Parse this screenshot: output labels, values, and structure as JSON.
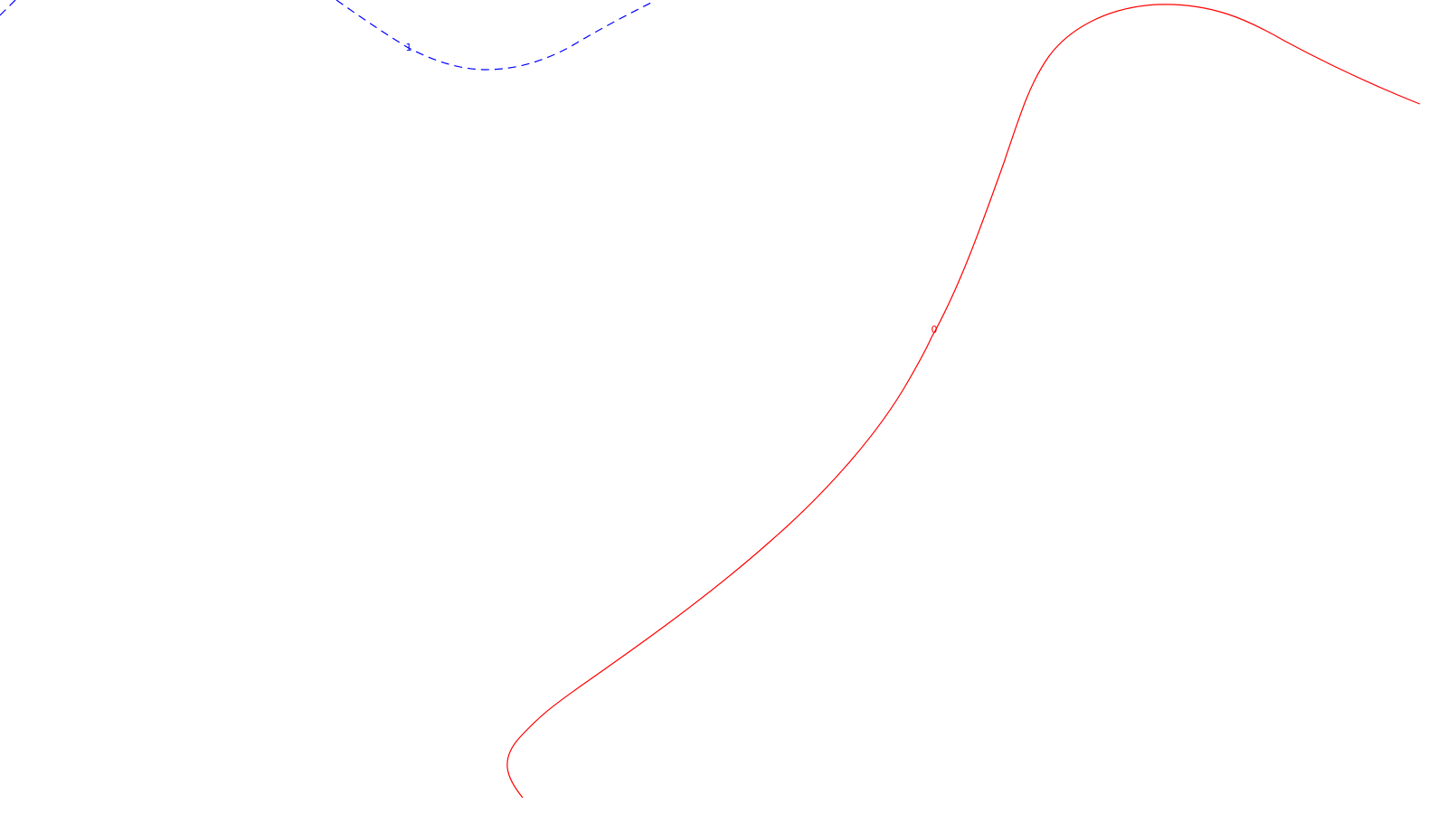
{
  "chart_data": {
    "type": "contour",
    "title": "",
    "xlabel": "",
    "ylabel": "",
    "axes_visible": false,
    "grid": false,
    "legend": "none",
    "contours": [
      {
        "level": "1",
        "label": "1",
        "color": "#0000ff",
        "style": "dashed"
      },
      {
        "level": "0",
        "label": "0",
        "color": "#ff0000",
        "style": "solid"
      }
    ]
  }
}
